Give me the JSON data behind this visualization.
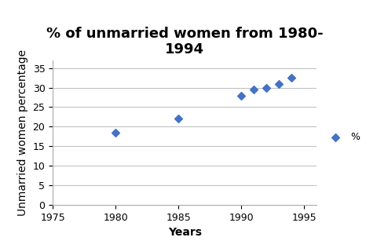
{
  "title": "% of unmarried women from 1980-\n1994",
  "xlabel": "Years",
  "ylabel": "Unmarried women percentage",
  "x_data": [
    1980,
    1985,
    1990,
    1991,
    1992,
    1993,
    1994
  ],
  "y_data": [
    18.5,
    22,
    28,
    29.5,
    30,
    31,
    32.5
  ],
  "xlim": [
    1975,
    1996
  ],
  "ylim": [
    0,
    37
  ],
  "yticks": [
    0,
    5,
    10,
    15,
    20,
    25,
    30,
    35
  ],
  "xticks": [
    1975,
    1980,
    1985,
    1990,
    1995
  ],
  "marker_color": "#4472C4",
  "marker": "D",
  "marker_size": 5,
  "legend_label": "%",
  "bg_color": "#FFFFFF",
  "grid_color": "#BBBBBB",
  "title_fontsize": 13,
  "axis_label_fontsize": 10,
  "tick_fontsize": 9
}
